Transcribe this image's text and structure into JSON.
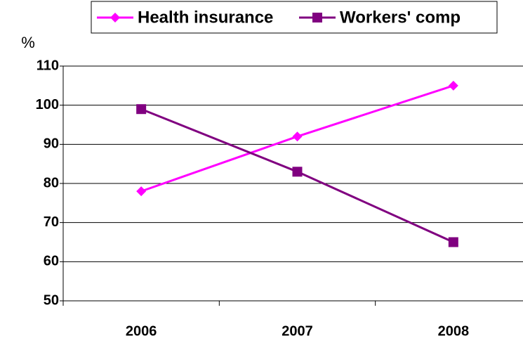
{
  "chart_data": {
    "type": "line",
    "ylabel": "%",
    "categories": [
      "2006",
      "2007",
      "2008"
    ],
    "series": [
      {
        "name": "Health insurance",
        "color": "#ff00ff",
        "marker": "diamond",
        "values": [
          78,
          92,
          105
        ]
      },
      {
        "name": "Workers' comp",
        "color": "#800080",
        "marker": "square",
        "values": [
          99,
          83,
          65
        ]
      }
    ],
    "ylim": [
      50,
      110
    ],
    "yticks": [
      50,
      60,
      70,
      80,
      90,
      100,
      110
    ],
    "grid": true,
    "legend": "top"
  }
}
